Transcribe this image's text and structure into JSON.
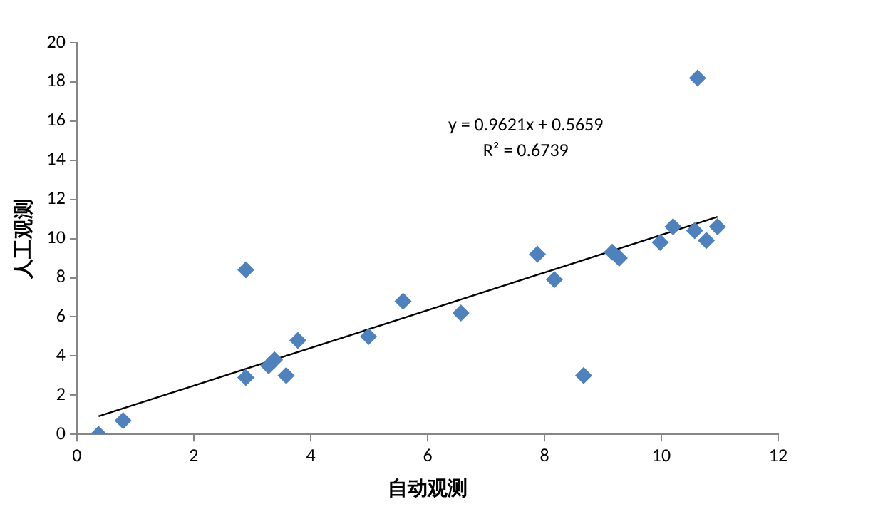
{
  "chart_data": {
    "type": "scatter",
    "xlabel": "自动观测",
    "ylabel": "人工观测",
    "xlim": [
      0,
      12
    ],
    "xticks": [
      0,
      2,
      4,
      6,
      8,
      10,
      12
    ],
    "ylim": [
      0,
      20
    ],
    "yticks": [
      0,
      2,
      4,
      6,
      8,
      10,
      12,
      14,
      16,
      18,
      20
    ],
    "grid": false,
    "legend": false,
    "marker": "diamond",
    "annotations": [
      "y = 0.9621x + 0.5659",
      "R² = 0.6739"
    ],
    "series": [
      {
        "color": "#4f81bd",
        "x": [
          0.37,
          0.79,
          2.89,
          2.89,
          3.28,
          3.38,
          3.58,
          3.78,
          4.99,
          5.58,
          6.57,
          7.88,
          8.17,
          8.67,
          9.16,
          9.28,
          9.98,
          10.2,
          10.57,
          10.62,
          10.77,
          10.96
        ],
        "values": [
          0,
          0.7,
          8.4,
          2.9,
          3.5,
          3.8,
          3.0,
          4.8,
          5.0,
          6.8,
          6.2,
          9.2,
          7.9,
          3.0,
          9.3,
          9.0,
          9.8,
          10.6,
          10.4,
          18.2,
          9.9,
          10.6
        ]
      },
      {
        "type": "line",
        "color": "#000000",
        "marker": "none",
        "x": [
          0.37,
          10.96
        ],
        "values": [
          0.92,
          11.11
        ]
      }
    ]
  }
}
